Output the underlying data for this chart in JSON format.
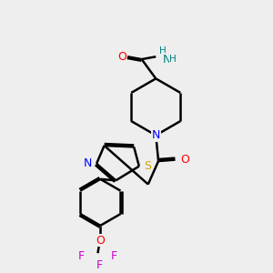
{
  "background_color": "#eeeeee",
  "bond_color": "#000000",
  "bond_width": 1.8,
  "figsize": [
    3.0,
    3.0
  ],
  "dpi": 100,
  "colors": {
    "O": "#ff0000",
    "N": "#0000ff",
    "S": "#ccaa00",
    "F": "#cc00cc",
    "H": "#008080",
    "C": "#000000"
  }
}
